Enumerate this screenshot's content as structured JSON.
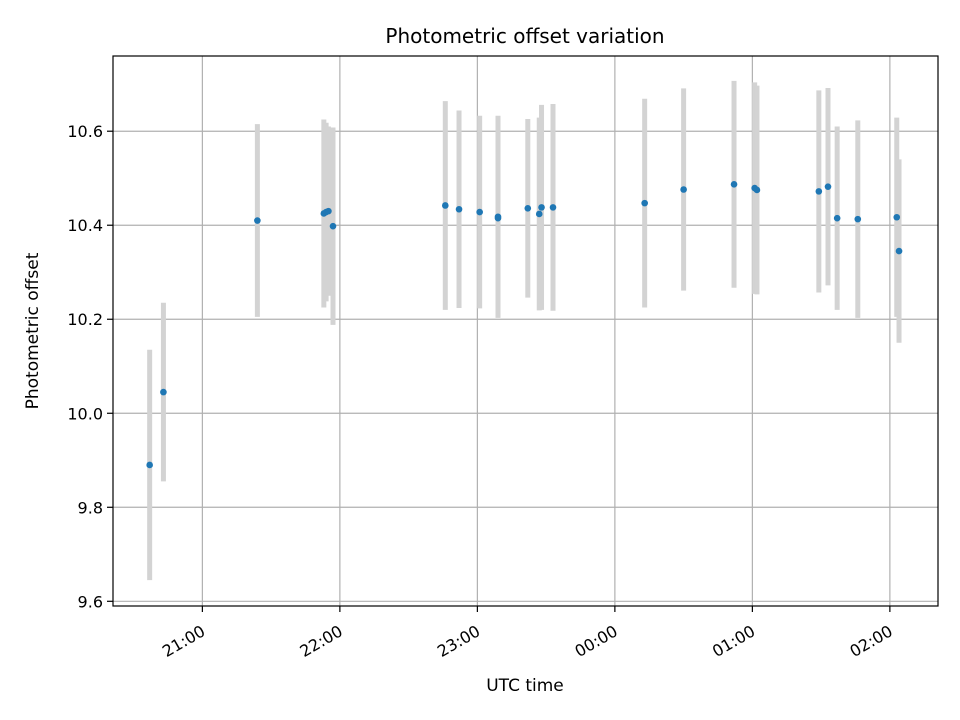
{
  "chart_data": {
    "type": "scatter",
    "title": "Photometric offset variation",
    "xlabel": "UTC time",
    "ylabel": "Photometric offset",
    "x_axis": {
      "kind": "time",
      "range": [
        "20:21",
        "02:21"
      ],
      "ticks": [
        "21:00",
        "22:00",
        "23:00",
        "00:00",
        "01:00",
        "02:00"
      ]
    },
    "y_axis": {
      "range": [
        9.59,
        10.76
      ],
      "ticks": [
        9.6,
        9.8,
        10.0,
        10.2,
        10.4,
        10.6
      ],
      "tick_labels": [
        "9.6",
        "9.8",
        "10.0",
        "10.2",
        "10.4",
        "10.6"
      ]
    },
    "grid": true,
    "legend": "none",
    "colors": {
      "point": "#1f77b4",
      "errorbar": "#d3d3d3",
      "grid": "#b0b0b0"
    },
    "series": [
      {
        "points": [
          {
            "x": "20:37",
            "y": 9.89,
            "yerr": 0.245
          },
          {
            "x": "20:43",
            "y": 10.045,
            "yerr": 0.19
          },
          {
            "x": "21:24",
            "y": 10.41,
            "yerr": 0.205
          },
          {
            "x": "21:53",
            "y": 10.425,
            "yerr": 0.2
          },
          {
            "x": "21:54",
            "y": 10.428,
            "yerr": 0.19
          },
          {
            "x": "21:55",
            "y": 10.43,
            "yerr": 0.18
          },
          {
            "x": "21:57",
            "y": 10.398,
            "yerr": 0.21
          },
          {
            "x": "22:46",
            "y": 10.442,
            "yerr": 0.222
          },
          {
            "x": "22:52",
            "y": 10.434,
            "yerr": 0.21
          },
          {
            "x": "23:01",
            "y": 10.428,
            "yerr": 0.205
          },
          {
            "x": "23:09",
            "y": 10.418,
            "yerr": 0.215
          },
          {
            "x": "23:09",
            "y": 10.415,
            "yerr": 0.205
          },
          {
            "x": "23:22",
            "y": 10.436,
            "yerr": 0.19
          },
          {
            "x": "23:27",
            "y": 10.424,
            "yerr": 0.205
          },
          {
            "x": "23:28",
            "y": 10.438,
            "yerr": 0.218
          },
          {
            "x": "23:33",
            "y": 10.438,
            "yerr": 0.22
          },
          {
            "x": "00:13",
            "y": 10.447,
            "yerr": 0.222
          },
          {
            "x": "00:30",
            "y": 10.476,
            "yerr": 0.215
          },
          {
            "x": "00:52",
            "y": 10.487,
            "yerr": 0.22
          },
          {
            "x": "01:01",
            "y": 10.479,
            "yerr": 0.225
          },
          {
            "x": "01:02",
            "y": 10.475,
            "yerr": 0.222
          },
          {
            "x": "01:29",
            "y": 10.472,
            "yerr": 0.215
          },
          {
            "x": "01:33",
            "y": 10.482,
            "yerr": 0.21
          },
          {
            "x": "01:37",
            "y": 10.415,
            "yerr": 0.195
          },
          {
            "x": "01:46",
            "y": 10.413,
            "yerr": 0.21
          },
          {
            "x": "02:03",
            "y": 10.417,
            "yerr": 0.212
          },
          {
            "x": "02:04",
            "y": 10.345,
            "yerr": 0.195
          }
        ]
      }
    ]
  }
}
